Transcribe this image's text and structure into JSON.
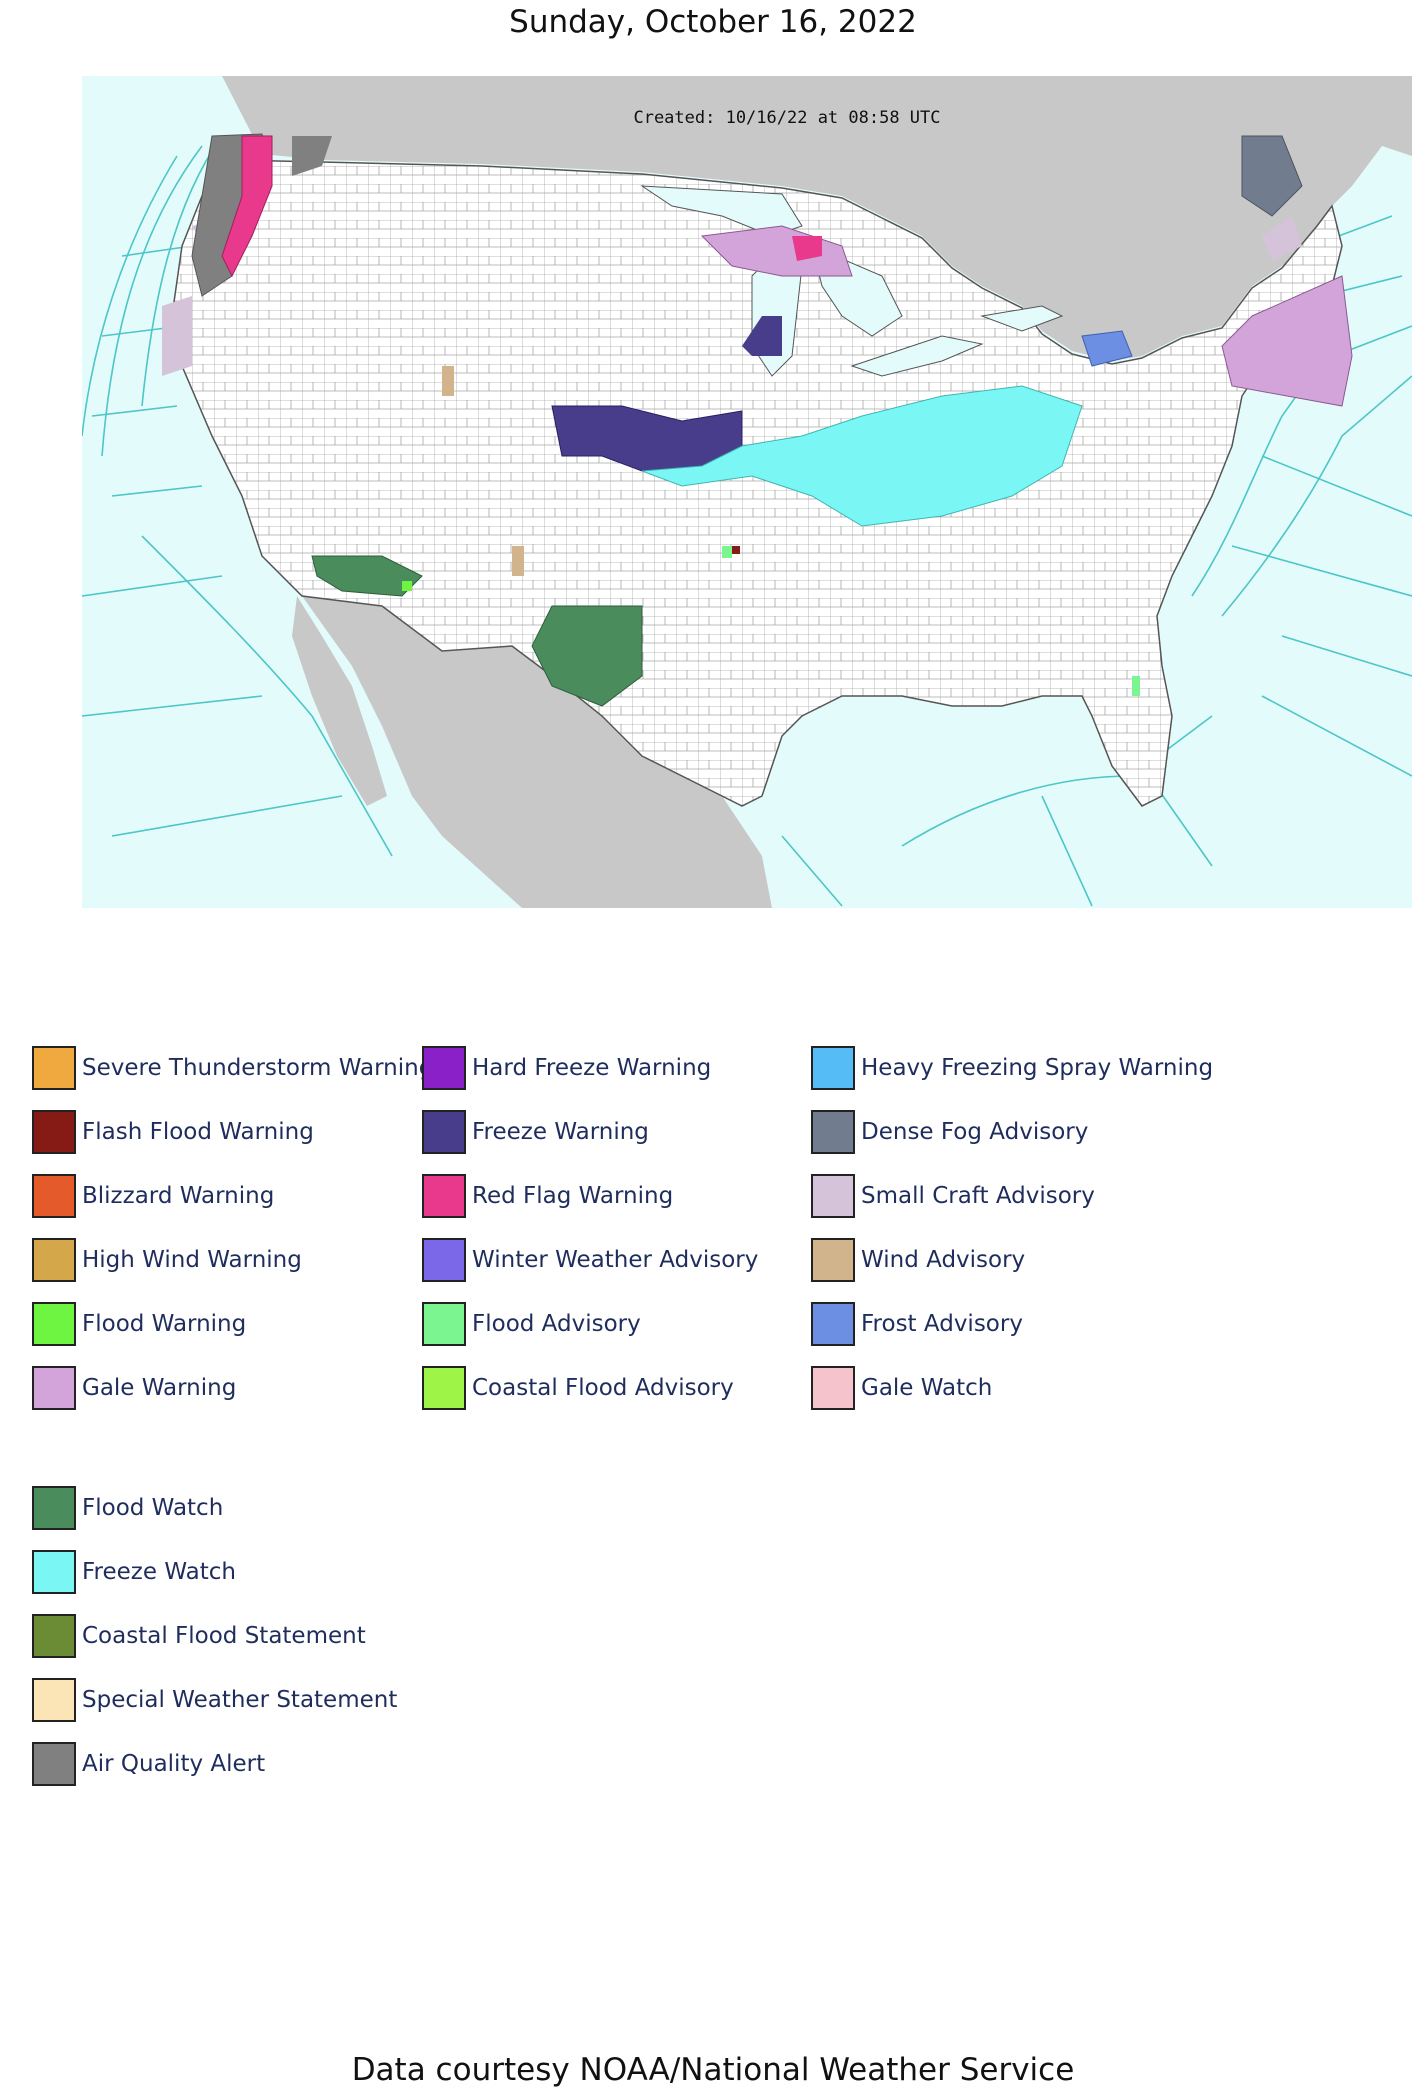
{
  "title": "Sunday, October 16, 2022",
  "map": {
    "created_stamp": "Created: 10/16/22 at 08:58 UTC",
    "ocean_color": "#e4fbfc",
    "land_color": "#ffffff",
    "foreign_land_color": "#c8c8c8",
    "county_line_color": "#9a9a9a",
    "marine_zone_color": "#4cc6c6"
  },
  "legend": {
    "columns": [
      [
        {
          "label": "Severe Thunderstorm Warning",
          "color": "#f0a93f"
        },
        {
          "label": "Flash Flood Warning",
          "color": "#861a14"
        },
        {
          "label": "Blizzard Warning",
          "color": "#e55a2a"
        },
        {
          "label": "High Wind Warning",
          "color": "#d3a74a"
        },
        {
          "label": "Flood Warning",
          "color": "#6ef542"
        },
        {
          "label": "Gale Warning",
          "color": "#d3a4d9"
        }
      ],
      [
        {
          "label": "Hard Freeze Warning",
          "color": "#8a20c8"
        },
        {
          "label": "Freeze Warning",
          "color": "#483d8b"
        },
        {
          "label": "Red Flag Warning",
          "color": "#e8398c"
        },
        {
          "label": "Winter Weather Advisory",
          "color": "#7b68e8"
        },
        {
          "label": "Flood Advisory",
          "color": "#7af58f"
        },
        {
          "label": "Coastal Flood Advisory",
          "color": "#9ef547"
        }
      ],
      [
        {
          "label": "Heavy Freezing Spray Warning",
          "color": "#55bcf5"
        },
        {
          "label": "Dense Fog Advisory",
          "color": "#717d8e"
        },
        {
          "label": "Small Craft Advisory",
          "color": "#d4c3d9"
        },
        {
          "label": "Wind Advisory",
          "color": "#d2b48c"
        },
        {
          "label": "Frost Advisory",
          "color": "#6c8fe3"
        },
        {
          "label": "Gale Watch",
          "color": "#f4c3cc"
        }
      ]
    ],
    "watches": [
      {
        "label": "Flood Watch",
        "color": "#4a8c5c"
      },
      {
        "label": "Freeze Watch",
        "color": "#7af7f5"
      },
      {
        "label": "Coastal Flood Statement",
        "color": "#6b8c35"
      },
      {
        "label": "Special Weather Statement",
        "color": "#fbe4b5"
      },
      {
        "label": "Air Quality Alert",
        "color": "#808080"
      }
    ]
  },
  "footer": "Data courtesy NOAA/National Weather Service"
}
